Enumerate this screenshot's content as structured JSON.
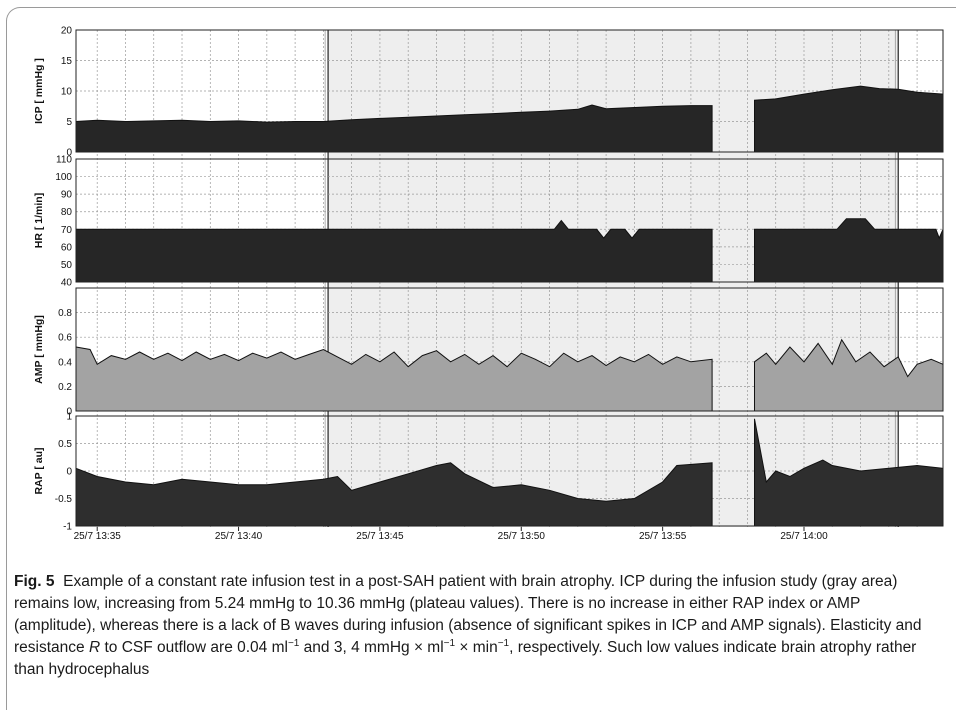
{
  "chart_data": {
    "type": "area",
    "x_start": "25/7 13:34:15",
    "x_end": "25/7 14:04:55",
    "x_ticks": [
      "25/7 13:35",
      "25/7 13:40",
      "25/7 13:45",
      "25/7 13:50",
      "25/7 13:55",
      "25/7 14:00"
    ],
    "shaded_region": {
      "start": "25/7 13:43:10",
      "end": "25/7 14:03:20",
      "color": "#eeeeee"
    },
    "gap": {
      "start": "25/7 13:56:45",
      "end": "25/7 13:58:15"
    },
    "panels": [
      {
        "ylabel": "ICP [ mmHg ]",
        "ylim": [
          0,
          20
        ],
        "yticks": [
          "0",
          "5",
          "10",
          "15",
          "20"
        ],
        "fill": "#262626",
        "series": [
          {
            "x": "25/7 13:34:15",
            "y": 5.0
          },
          {
            "x": "25/7 13:35:00",
            "y": 5.2
          },
          {
            "x": "25/7 13:36:00",
            "y": 5.0
          },
          {
            "x": "25/7 13:37:00",
            "y": 5.1
          },
          {
            "x": "25/7 13:38:00",
            "y": 5.2
          },
          {
            "x": "25/7 13:39:00",
            "y": 5.0
          },
          {
            "x": "25/7 13:40:00",
            "y": 5.1
          },
          {
            "x": "25/7 13:41:00",
            "y": 4.9
          },
          {
            "x": "25/7 13:42:00",
            "y": 5.0
          },
          {
            "x": "25/7 13:43:00",
            "y": 5.0
          },
          {
            "x": "25/7 13:44:00",
            "y": 5.3
          },
          {
            "x": "25/7 13:45:00",
            "y": 5.5
          },
          {
            "x": "25/7 13:46:00",
            "y": 5.7
          },
          {
            "x": "25/7 13:47:00",
            "y": 5.9
          },
          {
            "x": "25/7 13:48:00",
            "y": 6.1
          },
          {
            "x": "25/7 13:49:00",
            "y": 6.3
          },
          {
            "x": "25/7 13:50:00",
            "y": 6.5
          },
          {
            "x": "25/7 13:51:00",
            "y": 6.7
          },
          {
            "x": "25/7 13:52:00",
            "y": 7.0
          },
          {
            "x": "25/7 13:52:30",
            "y": 7.7
          },
          {
            "x": "25/7 13:53:00",
            "y": 7.1
          },
          {
            "x": "25/7 13:54:00",
            "y": 7.3
          },
          {
            "x": "25/7 13:55:00",
            "y": 7.5
          },
          {
            "x": "25/7 13:56:00",
            "y": 7.6
          },
          {
            "x": "25/7 13:56:45",
            "y": 7.6
          },
          {
            "x": "25/7 13:58:15",
            "y": 8.5
          },
          {
            "x": "25/7 13:59:00",
            "y": 8.7
          },
          {
            "x": "25/7 14:00:00",
            "y": 9.5
          },
          {
            "x": "25/7 14:01:00",
            "y": 10.2
          },
          {
            "x": "25/7 14:02:00",
            "y": 10.8
          },
          {
            "x": "25/7 14:02:40",
            "y": 10.4
          },
          {
            "x": "25/7 14:03:20",
            "y": 10.3
          },
          {
            "x": "25/7 14:04:00",
            "y": 9.8
          },
          {
            "x": "25/7 14:04:55",
            "y": 9.5
          }
        ]
      },
      {
        "ylabel": "HR [ 1/min]",
        "ylim": [
          40,
          110
        ],
        "yticks": [
          "40",
          "50",
          "60",
          "70",
          "80",
          "90",
          "100",
          "110"
        ],
        "fill": "#262626",
        "series": [
          {
            "x": "25/7 13:34:15",
            "y": 70
          },
          {
            "x": "25/7 13:51:10",
            "y": 70
          },
          {
            "x": "25/7 13:51:25",
            "y": 75
          },
          {
            "x": "25/7 13:51:40",
            "y": 70
          },
          {
            "x": "25/7 13:52:40",
            "y": 70
          },
          {
            "x": "25/7 13:52:55",
            "y": 65
          },
          {
            "x": "25/7 13:53:10",
            "y": 70
          },
          {
            "x": "25/7 13:53:40",
            "y": 70
          },
          {
            "x": "25/7 13:53:55",
            "y": 65
          },
          {
            "x": "25/7 13:54:10",
            "y": 70
          },
          {
            "x": "25/7 13:56:45",
            "y": 70
          },
          {
            "x": "25/7 13:58:15",
            "y": 70
          },
          {
            "x": "25/7 14:01:10",
            "y": 70
          },
          {
            "x": "25/7 14:01:30",
            "y": 76
          },
          {
            "x": "25/7 14:02:10",
            "y": 76
          },
          {
            "x": "25/7 14:02:30",
            "y": 70
          },
          {
            "x": "25/7 14:04:40",
            "y": 70
          },
          {
            "x": "25/7 14:04:47",
            "y": 65
          },
          {
            "x": "25/7 14:04:55",
            "y": 70
          }
        ]
      },
      {
        "ylabel": "AMP [ mmHg]",
        "ylim": [
          0,
          1
        ],
        "yticks": [
          "0",
          "0.2",
          "0.4",
          "0.6",
          "0.8"
        ],
        "fill": "#a3a3a3",
        "series": [
          {
            "x": "25/7 13:34:15",
            "y": 0.52
          },
          {
            "x": "25/7 13:34:45",
            "y": 0.5
          },
          {
            "x": "25/7 13:35:00",
            "y": 0.38
          },
          {
            "x": "25/7 13:35:30",
            "y": 0.45
          },
          {
            "x": "25/7 13:36:00",
            "y": 0.42
          },
          {
            "x": "25/7 13:36:30",
            "y": 0.48
          },
          {
            "x": "25/7 13:37:00",
            "y": 0.42
          },
          {
            "x": "25/7 13:37:30",
            "y": 0.47
          },
          {
            "x": "25/7 13:38:00",
            "y": 0.41
          },
          {
            "x": "25/7 13:38:30",
            "y": 0.48
          },
          {
            "x": "25/7 13:39:00",
            "y": 0.42
          },
          {
            "x": "25/7 13:39:30",
            "y": 0.46
          },
          {
            "x": "25/7 13:40:00",
            "y": 0.41
          },
          {
            "x": "25/7 13:40:30",
            "y": 0.47
          },
          {
            "x": "25/7 13:41:00",
            "y": 0.43
          },
          {
            "x": "25/7 13:41:30",
            "y": 0.48
          },
          {
            "x": "25/7 13:42:00",
            "y": 0.42
          },
          {
            "x": "25/7 13:42:30",
            "y": 0.46
          },
          {
            "x": "25/7 13:43:00",
            "y": 0.5
          },
          {
            "x": "25/7 13:43:30",
            "y": 0.44
          },
          {
            "x": "25/7 13:44:00",
            "y": 0.38
          },
          {
            "x": "25/7 13:44:30",
            "y": 0.46
          },
          {
            "x": "25/7 13:45:00",
            "y": 0.4
          },
          {
            "x": "25/7 13:45:30",
            "y": 0.48
          },
          {
            "x": "25/7 13:46:00",
            "y": 0.36
          },
          {
            "x": "25/7 13:46:30",
            "y": 0.45
          },
          {
            "x": "25/7 13:47:00",
            "y": 0.49
          },
          {
            "x": "25/7 13:47:30",
            "y": 0.4
          },
          {
            "x": "25/7 13:48:00",
            "y": 0.46
          },
          {
            "x": "25/7 13:48:30",
            "y": 0.38
          },
          {
            "x": "25/7 13:49:00",
            "y": 0.45
          },
          {
            "x": "25/7 13:49:30",
            "y": 0.36
          },
          {
            "x": "25/7 13:50:00",
            "y": 0.47
          },
          {
            "x": "25/7 13:50:30",
            "y": 0.42
          },
          {
            "x": "25/7 13:51:00",
            "y": 0.36
          },
          {
            "x": "25/7 13:51:30",
            "y": 0.47
          },
          {
            "x": "25/7 13:52:00",
            "y": 0.4
          },
          {
            "x": "25/7 13:52:30",
            "y": 0.45
          },
          {
            "x": "25/7 13:53:00",
            "y": 0.37
          },
          {
            "x": "25/7 13:53:30",
            "y": 0.44
          },
          {
            "x": "25/7 13:54:00",
            "y": 0.4
          },
          {
            "x": "25/7 13:54:30",
            "y": 0.46
          },
          {
            "x": "25/7 13:55:00",
            "y": 0.38
          },
          {
            "x": "25/7 13:55:30",
            "y": 0.44
          },
          {
            "x": "25/7 13:56:00",
            "y": 0.4
          },
          {
            "x": "25/7 13:56:45",
            "y": 0.42
          },
          {
            "x": "25/7 13:58:15",
            "y": 0.4
          },
          {
            "x": "25/7 13:58:40",
            "y": 0.47
          },
          {
            "x": "25/7 13:59:00",
            "y": 0.38
          },
          {
            "x": "25/7 13:59:30",
            "y": 0.52
          },
          {
            "x": "25/7 14:00:00",
            "y": 0.4
          },
          {
            "x": "25/7 14:00:30",
            "y": 0.55
          },
          {
            "x": "25/7 14:01:00",
            "y": 0.38
          },
          {
            "x": "25/7 14:01:20",
            "y": 0.58
          },
          {
            "x": "25/7 14:01:50",
            "y": 0.4
          },
          {
            "x": "25/7 14:02:20",
            "y": 0.48
          },
          {
            "x": "25/7 14:02:50",
            "y": 0.36
          },
          {
            "x": "25/7 14:03:20",
            "y": 0.44
          },
          {
            "x": "25/7 14:03:40",
            "y": 0.28
          },
          {
            "x": "25/7 14:04:00",
            "y": 0.38
          },
          {
            "x": "25/7 14:04:30",
            "y": 0.42
          },
          {
            "x": "25/7 14:04:55",
            "y": 0.38
          }
        ]
      },
      {
        "ylabel": "RAP [ au]",
        "ylim": [
          -1,
          1
        ],
        "yticks": [
          "-1",
          "-0.5",
          "0",
          "0.5",
          "1"
        ],
        "fill": "#2e2e2e",
        "series": [
          {
            "x": "25/7 13:34:15",
            "y": 0.05
          },
          {
            "x": "25/7 13:35:00",
            "y": -0.1
          },
          {
            "x": "25/7 13:36:00",
            "y": -0.2
          },
          {
            "x": "25/7 13:37:00",
            "y": -0.25
          },
          {
            "x": "25/7 13:38:00",
            "y": -0.15
          },
          {
            "x": "25/7 13:39:00",
            "y": -0.2
          },
          {
            "x": "25/7 13:40:00",
            "y": -0.25
          },
          {
            "x": "25/7 13:41:00",
            "y": -0.25
          },
          {
            "x": "25/7 13:42:00",
            "y": -0.2
          },
          {
            "x": "25/7 13:43:00",
            "y": -0.15
          },
          {
            "x": "25/7 13:43:30",
            "y": -0.1
          },
          {
            "x": "25/7 13:44:00",
            "y": -0.35
          },
          {
            "x": "25/7 13:45:00",
            "y": -0.2
          },
          {
            "x": "25/7 13:46:00",
            "y": -0.05
          },
          {
            "x": "25/7 13:47:00",
            "y": 0.1
          },
          {
            "x": "25/7 13:47:30",
            "y": 0.15
          },
          {
            "x": "25/7 13:48:00",
            "y": -0.05
          },
          {
            "x": "25/7 13:49:00",
            "y": -0.3
          },
          {
            "x": "25/7 13:50:00",
            "y": -0.25
          },
          {
            "x": "25/7 13:51:00",
            "y": -0.35
          },
          {
            "x": "25/7 13:52:00",
            "y": -0.5
          },
          {
            "x": "25/7 13:53:00",
            "y": -0.55
          },
          {
            "x": "25/7 13:54:00",
            "y": -0.5
          },
          {
            "x": "25/7 13:55:00",
            "y": -0.2
          },
          {
            "x": "25/7 13:55:30",
            "y": 0.1
          },
          {
            "x": "25/7 13:56:45",
            "y": 0.15
          },
          {
            "x": "25/7 13:58:15",
            "y": 0.95
          },
          {
            "x": "25/7 13:58:40",
            "y": -0.2
          },
          {
            "x": "25/7 13:59:00",
            "y": 0.0
          },
          {
            "x": "25/7 13:59:30",
            "y": -0.1
          },
          {
            "x": "25/7 14:00:00",
            "y": 0.05
          },
          {
            "x": "25/7 14:00:40",
            "y": 0.2
          },
          {
            "x": "25/7 14:01:00",
            "y": 0.1
          },
          {
            "x": "25/7 14:02:00",
            "y": 0.0
          },
          {
            "x": "25/7 14:03:00",
            "y": 0.05
          },
          {
            "x": "25/7 14:04:00",
            "y": 0.1
          },
          {
            "x": "25/7 14:04:55",
            "y": 0.05
          }
        ]
      }
    ]
  },
  "caption": {
    "fig_label": "Fig. 5",
    "text": "Example of a constant rate infusion test in a post-SAH patient with brain atrophy. ICP during the infusion study (gray area) remains low, increasing from 5.24 mmHg to 10.36 mmHg (plateau values). There is no increase in either RAP index or AMP (amplitude), whereas there is a lack of B waves during infusion (absence of significant spikes in ICP and AMP signals). Elasticity and resistance R to CSF outflow are 0.04 ml−1 and 3, 4 mmHg × ml−1 × min−1, respectively. Such low values indicate brain atrophy rather than hydrocephalus",
    "parts": [
      "Example of a constant rate infusion test in a post-SAH patient with brain atrophy. ICP during the infusion study (gray area) remains low, increasing from 5.24 mmHg to 10.36 mmHg (plateau values). There is no increase in either RAP index or AMP (amplitude), whereas there is a lack of B waves during infusion (absence of significant spikes in ICP and AMP signals). Elasticity and resistance ",
      "R",
      " to CSF outflow are 0.04 ml",
      "−1",
      " and 3, 4 mmHg × ml",
      "−1",
      " × min",
      "−1",
      ", respectively. Such low values indicate brain atrophy rather than hydrocephalus"
    ]
  }
}
